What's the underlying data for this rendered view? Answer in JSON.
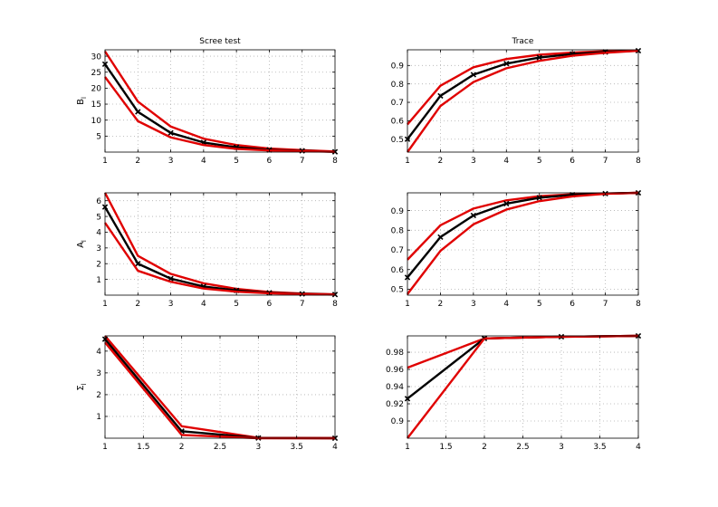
{
  "chart_data": [
    {
      "type": "line",
      "title": "Scree test",
      "ylabel": "B",
      "ylabel_sub": "l",
      "xlim": [
        1,
        8
      ],
      "ylim": [
        0,
        32
      ],
      "xticks": [
        1,
        2,
        3,
        4,
        5,
        6,
        7,
        8
      ],
      "yticks": [
        5,
        10,
        15,
        20,
        25,
        30
      ],
      "grid": true,
      "series": [
        {
          "role": "upper",
          "color": "#e00000",
          "marker": "none",
          "x": [
            1,
            2,
            3,
            4,
            5,
            6,
            7,
            8
          ],
          "y": [
            31.5,
            15.8,
            8.0,
            4.2,
            2.2,
            1.1,
            0.6,
            0.2
          ]
        },
        {
          "role": "estimate",
          "color": "#000000",
          "marker": "x",
          "x": [
            1,
            2,
            3,
            4,
            5,
            6,
            7,
            8
          ],
          "y": [
            27.5,
            12.6,
            6.0,
            3.0,
            1.5,
            0.7,
            0.4,
            0.1
          ]
        },
        {
          "role": "lower",
          "color": "#e00000",
          "marker": "none",
          "x": [
            1,
            2,
            3,
            4,
            5,
            6,
            7,
            8
          ],
          "y": [
            23.5,
            9.7,
            4.6,
            2.2,
            1.0,
            0.5,
            0.3,
            0.1
          ]
        }
      ]
    },
    {
      "type": "line",
      "title": "Trace",
      "xlim": [
        1,
        8
      ],
      "ylim": [
        0.43,
        0.985
      ],
      "xticks": [
        1,
        2,
        3,
        4,
        5,
        6,
        7,
        8
      ],
      "yticks": [
        0.5,
        0.6,
        0.7,
        0.8,
        0.9
      ],
      "grid": true,
      "series": [
        {
          "role": "upper",
          "color": "#e00000",
          "marker": "none",
          "x": [
            1,
            2,
            3,
            4,
            5,
            6,
            7,
            8
          ],
          "y": [
            0.58,
            0.79,
            0.89,
            0.935,
            0.958,
            0.97,
            0.977,
            0.98
          ]
        },
        {
          "role": "estimate",
          "color": "#000000",
          "marker": "x",
          "x": [
            1,
            2,
            3,
            4,
            5,
            6,
            7,
            8
          ],
          "y": [
            0.5,
            0.735,
            0.85,
            0.91,
            0.943,
            0.962,
            0.973,
            0.98
          ]
        },
        {
          "role": "lower",
          "color": "#e00000",
          "marker": "none",
          "x": [
            1,
            2,
            3,
            4,
            5,
            6,
            7,
            8
          ],
          "y": [
            0.43,
            0.68,
            0.81,
            0.885,
            0.925,
            0.953,
            0.969,
            0.98
          ]
        }
      ]
    },
    {
      "type": "line",
      "title": "",
      "ylabel": "A",
      "ylabel_sub": "l",
      "xlim": [
        1,
        8
      ],
      "ylim": [
        0,
        6.5
      ],
      "xticks": [
        1,
        2,
        3,
        4,
        5,
        6,
        7,
        8
      ],
      "yticks": [
        1,
        2,
        3,
        4,
        5,
        6
      ],
      "grid": true,
      "series": [
        {
          "role": "upper",
          "color": "#e00000",
          "marker": "none",
          "x": [
            1,
            2,
            3,
            4,
            5,
            6,
            7,
            8
          ],
          "y": [
            6.5,
            2.5,
            1.35,
            0.75,
            0.4,
            0.2,
            0.1,
            0.05
          ]
        },
        {
          "role": "estimate",
          "color": "#000000",
          "marker": "x",
          "x": [
            1,
            2,
            3,
            4,
            5,
            6,
            7,
            8
          ],
          "y": [
            5.6,
            2.0,
            1.05,
            0.55,
            0.3,
            0.15,
            0.08,
            0.04
          ]
        },
        {
          "role": "lower",
          "color": "#e00000",
          "marker": "none",
          "x": [
            1,
            2,
            3,
            4,
            5,
            6,
            7,
            8
          ],
          "y": [
            4.6,
            1.55,
            0.85,
            0.42,
            0.22,
            0.12,
            0.06,
            0.03
          ]
        }
      ]
    },
    {
      "type": "line",
      "title": "",
      "xlim": [
        1,
        8
      ],
      "ylim": [
        0.47,
        0.99
      ],
      "xticks": [
        1,
        2,
        3,
        4,
        5,
        6,
        7,
        8
      ],
      "yticks": [
        0.5,
        0.6,
        0.7,
        0.8,
        0.9
      ],
      "grid": true,
      "series": [
        {
          "role": "upper",
          "color": "#e00000",
          "marker": "none",
          "x": [
            1,
            2,
            3,
            4,
            5,
            6,
            7,
            8
          ],
          "y": [
            0.65,
            0.825,
            0.91,
            0.952,
            0.973,
            0.983,
            0.987,
            0.99
          ]
        },
        {
          "role": "estimate",
          "color": "#000000",
          "marker": "x",
          "x": [
            1,
            2,
            3,
            4,
            5,
            6,
            7,
            8
          ],
          "y": [
            0.56,
            0.765,
            0.875,
            0.935,
            0.965,
            0.98,
            0.986,
            0.99
          ]
        },
        {
          "role": "lower",
          "color": "#e00000",
          "marker": "none",
          "x": [
            1,
            2,
            3,
            4,
            5,
            6,
            7,
            8
          ],
          "y": [
            0.475,
            0.695,
            0.83,
            0.905,
            0.948,
            0.972,
            0.985,
            0.99
          ]
        }
      ]
    },
    {
      "type": "line",
      "title": "",
      "ylabel": "Σ",
      "ylabel_sub": "l",
      "xlim": [
        1,
        4
      ],
      "ylim": [
        0,
        4.7
      ],
      "xticks": [
        1,
        1.5,
        2,
        2.5,
        3,
        3.5,
        4
      ],
      "yticks": [
        1,
        2,
        3,
        4
      ],
      "grid": true,
      "series": [
        {
          "role": "upper",
          "color": "#e00000",
          "marker": "none",
          "x": [
            1,
            2,
            3,
            4
          ],
          "y": [
            4.7,
            0.55,
            0.02,
            0.0
          ]
        },
        {
          "role": "estimate",
          "color": "#000000",
          "marker": "x",
          "x": [
            1,
            2,
            3,
            4
          ],
          "y": [
            4.55,
            0.32,
            0.01,
            0.0
          ]
        },
        {
          "role": "lower",
          "color": "#e00000",
          "marker": "none",
          "x": [
            1,
            2,
            3,
            4
          ],
          "y": [
            4.4,
            0.15,
            0.0,
            0.0
          ]
        }
      ]
    },
    {
      "type": "line",
      "title": "",
      "xlim": [
        1,
        4
      ],
      "ylim": [
        0.88,
        0.999
      ],
      "xticks": [
        1,
        1.5,
        2,
        2.5,
        3,
        3.5,
        4
      ],
      "yticks": [
        0.9,
        0.92,
        0.94,
        0.96,
        0.98
      ],
      "grid": true,
      "series": [
        {
          "role": "upper",
          "color": "#e00000",
          "marker": "none",
          "x": [
            1,
            2,
            3,
            4
          ],
          "y": [
            0.962,
            0.996,
            0.998,
            0.999
          ]
        },
        {
          "role": "estimate",
          "color": "#000000",
          "marker": "x",
          "x": [
            1,
            2,
            3,
            4
          ],
          "y": [
            0.926,
            0.996,
            0.998,
            0.999
          ]
        },
        {
          "role": "lower",
          "color": "#e00000",
          "marker": "none",
          "x": [
            1,
            2,
            3,
            4
          ],
          "y": [
            0.88,
            0.996,
            0.998,
            0.999
          ]
        }
      ]
    }
  ]
}
